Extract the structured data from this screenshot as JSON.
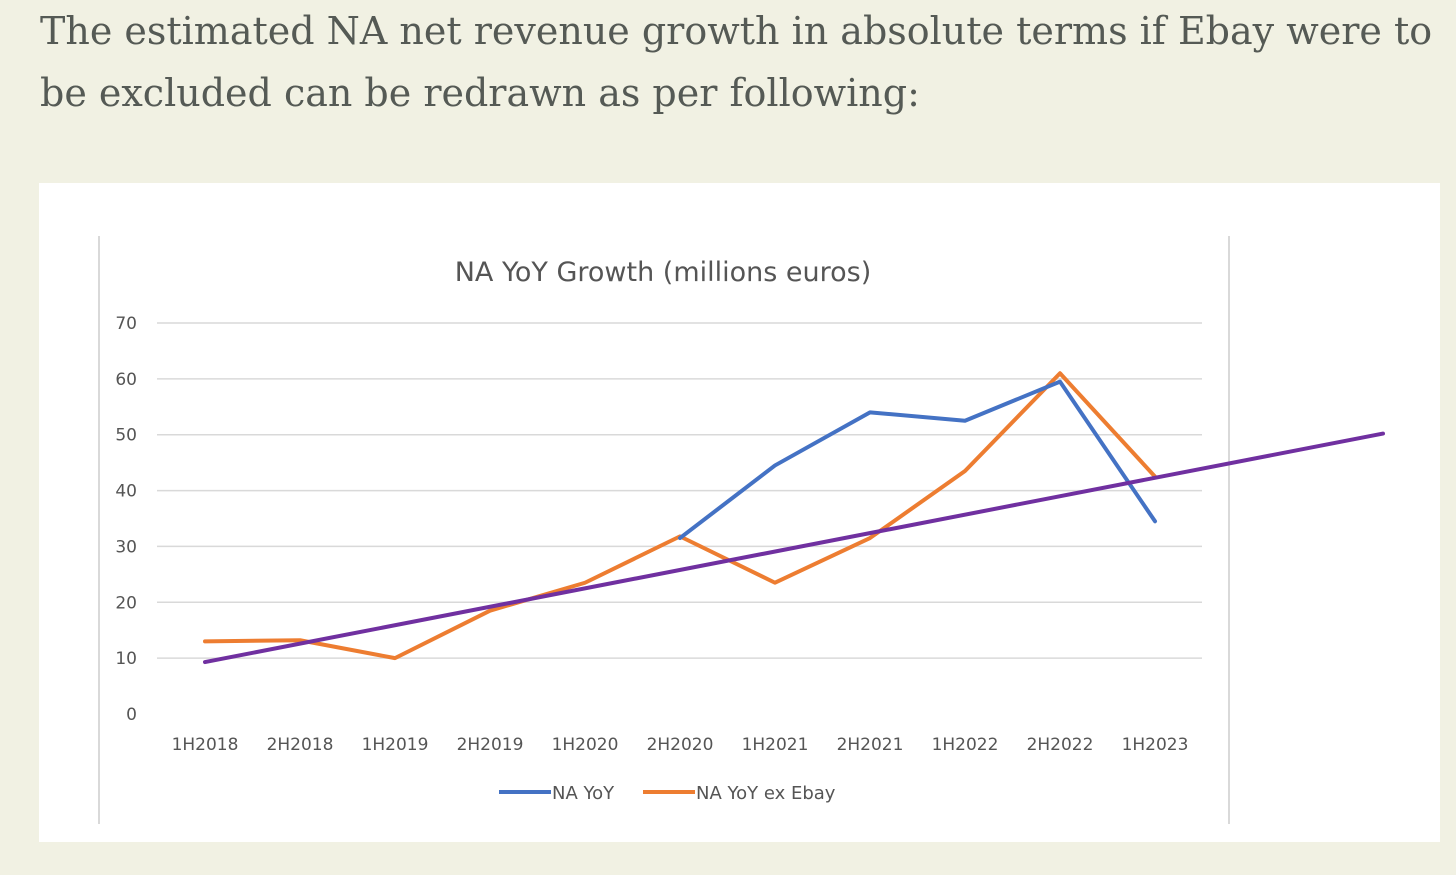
{
  "intro_text": "The estimated NA net revenue growth in absolute terms if Ebay were to be excluded can be redrawn as per following:",
  "chart_data": {
    "type": "line",
    "title": "NA YoY Growth (millions euros)",
    "xlabel": "",
    "ylabel": "",
    "categories": [
      "1H2018",
      "2H2018",
      "1H2019",
      "2H2019",
      "1H2020",
      "2H2020",
      "1H2021",
      "2H2021",
      "1H2022",
      "2H2022",
      "1H2023"
    ],
    "y_ticks": [
      "0",
      "10",
      "20",
      "30",
      "40",
      "50",
      "60",
      "70"
    ],
    "ylim": [
      0,
      70
    ],
    "grid": true,
    "legend_position": "bottom",
    "series": [
      {
        "name": "NA YoY",
        "color": "#4472c4",
        "values": [
          null,
          null,
          null,
          null,
          null,
          31.5,
          44.5,
          54,
          52.5,
          59.5,
          34.5
        ]
      },
      {
        "name": "NA YoY ex Ebay",
        "color": "#ed7d31",
        "values": [
          13,
          13.2,
          10,
          18.5,
          23.5,
          31.8,
          23.5,
          31.5,
          43.5,
          61,
          42.5
        ]
      }
    ],
    "trendline": {
      "color": "#7030a0",
      "start": {
        "x_index": 0,
        "y": 9.3
      },
      "end": {
        "x_index": 12.4,
        "y": 50.2
      }
    }
  }
}
